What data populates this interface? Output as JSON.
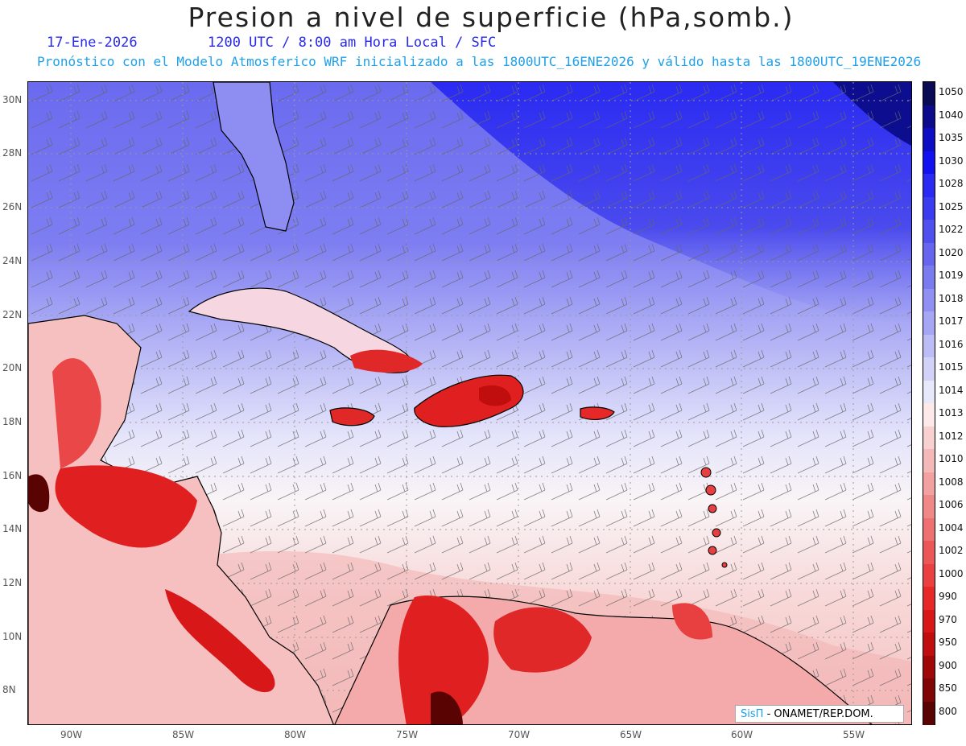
{
  "header": {
    "title": "Presion a nivel de superficie (hPa,somb.)",
    "date": "17-Ene-2026",
    "valid_time": "1200 UTC / 8:00 am Hora Local / SFC",
    "model_info": "Pronóstico con el Modelo Atmosferico WRF inicializado a las 1800UTC_16ENE2026 y válido hasta las  1800UTC_19ENE2026"
  },
  "axes": {
    "lat_labels": [
      "30N",
      "28N",
      "26N",
      "24N",
      "22N",
      "20N",
      "18N",
      "16N",
      "14N",
      "12N",
      "10N",
      "8N"
    ],
    "lon_labels": [
      "90W",
      "85W",
      "80W",
      "75W",
      "70W",
      "65W",
      "60W",
      "55W"
    ]
  },
  "colorbar": {
    "labels": [
      "1050",
      "1040",
      "1035",
      "1030",
      "1028",
      "1025",
      "1022",
      "1020",
      "1019",
      "1018",
      "1017",
      "1016",
      "1015",
      "1014",
      "1013",
      "1012",
      "1010",
      "1008",
      "1006",
      "1004",
      "1002",
      "1000",
      "990",
      "970",
      "950",
      "900",
      "850",
      "800"
    ],
    "colors": [
      "#0a0a55",
      "#0b0b8c",
      "#0d0dc4",
      "#1212f0",
      "#2a2af2",
      "#3b3bf0",
      "#5050ee",
      "#6565ee",
      "#7b7bf0",
      "#9090f2",
      "#a6a6f4",
      "#bcbcf6",
      "#d2d2f8",
      "#e8e8fb",
      "#fde9e9",
      "#f8d0d0",
      "#f4b8b8",
      "#f2a0a0",
      "#f08888",
      "#ee7070",
      "#ec5858",
      "#ea4040",
      "#e62828",
      "#d81818",
      "#c00d0d",
      "#a00808",
      "#800505",
      "#5a0303"
    ]
  },
  "credit": {
    "brand": "SisΠ",
    "text": "- ONAMET/REP.DOM."
  }
}
